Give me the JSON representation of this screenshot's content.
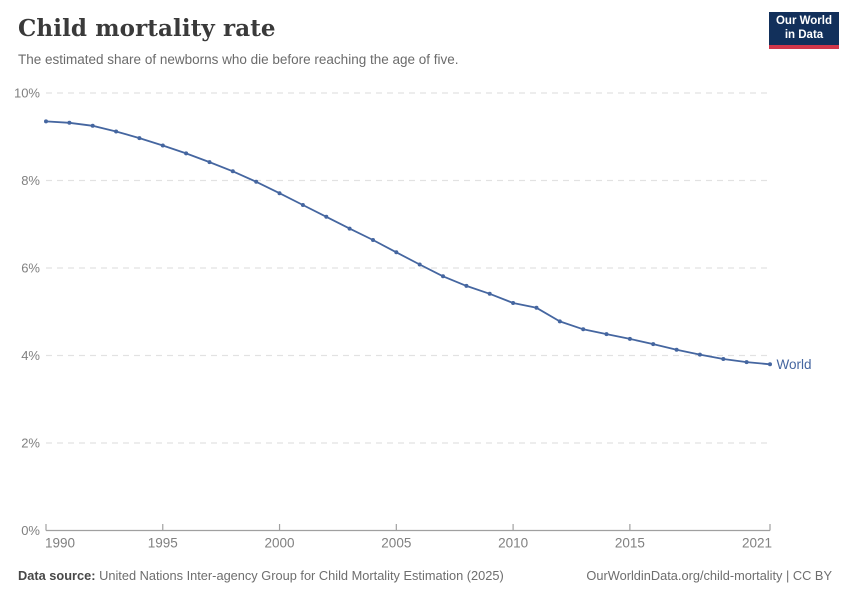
{
  "header": {
    "title": "Child mortality rate",
    "subtitle": "The estimated share of newborns who die before reaching the age of five.",
    "logo": {
      "line1": "Our World",
      "line2": "in Data",
      "bg_color": "#12305b",
      "accent_color": "#d2374a"
    }
  },
  "chart_data": {
    "type": "line",
    "title": "Child mortality rate",
    "xlabel": "",
    "ylabel": "",
    "ylim": [
      0,
      10
    ],
    "grid": "horizontal-dashed",
    "legend_position": "end-of-line",
    "end_label": "World",
    "ytick_values": [
      0,
      2,
      4,
      6,
      8,
      10
    ],
    "ytick_labels": [
      "0%",
      "2%",
      "4%",
      "6%",
      "8%",
      "10%"
    ],
    "xtick_values": [
      1990,
      1995,
      2000,
      2005,
      2010,
      2015,
      2021
    ],
    "x": [
      1990,
      1991,
      1992,
      1993,
      1994,
      1995,
      1996,
      1997,
      1998,
      1999,
      2000,
      2001,
      2002,
      2003,
      2004,
      2005,
      2006,
      2007,
      2008,
      2009,
      2010,
      2011,
      2012,
      2013,
      2014,
      2015,
      2016,
      2017,
      2018,
      2019,
      2020,
      2021
    ],
    "series": [
      {
        "name": "World",
        "color": "#4566a0",
        "values": [
          9.35,
          9.32,
          9.25,
          9.12,
          8.97,
          8.8,
          8.62,
          8.42,
          8.21,
          7.97,
          7.71,
          7.44,
          7.17,
          6.9,
          6.64,
          6.36,
          6.08,
          5.81,
          5.59,
          5.41,
          5.2,
          5.09,
          4.78,
          4.6,
          4.49,
          4.38,
          4.26,
          4.13,
          4.02,
          3.92,
          3.85,
          3.8
        ]
      }
    ],
    "colors": {
      "gridline": "#e2e2e2",
      "axis": "#a0a0a0",
      "tick_label": "#808080"
    }
  },
  "footer": {
    "source_label": "Data source:",
    "source_text": " United Nations Inter-agency Group for Child Mortality Estimation (2025)",
    "right_text": "OurWorldinData.org/child-mortality | CC BY"
  }
}
